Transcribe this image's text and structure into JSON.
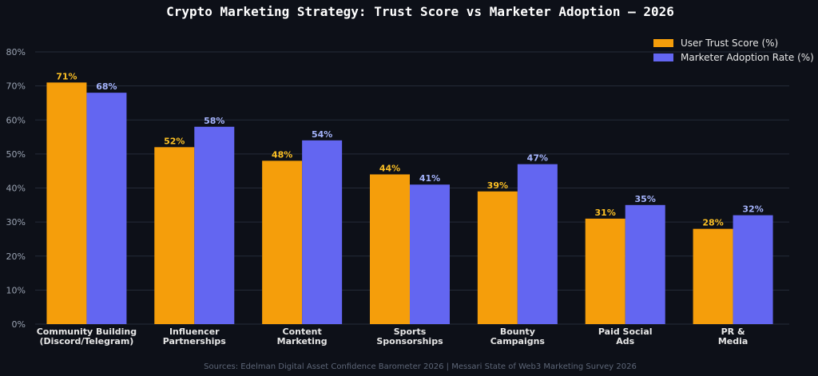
{
  "chart_data": {
    "type": "bar",
    "title": "Crypto Marketing Strategy: Trust Score vs Marketer Adoption — 2026",
    "categories": [
      [
        "Community Building",
        "(Discord/Telegram)"
      ],
      [
        "Influencer",
        "Partnerships"
      ],
      [
        "Content",
        "Marketing"
      ],
      [
        "Sports",
        "Sponsorships"
      ],
      [
        "Bounty",
        "Campaigns"
      ],
      [
        "Paid Social",
        "Ads"
      ],
      [
        "PR &",
        "Media"
      ]
    ],
    "series": [
      {
        "name": "User Trust Score (%)",
        "values": [
          71,
          52,
          48,
          44,
          39,
          31,
          28
        ],
        "color": "#f59e0b",
        "label_color": "#fbbf24"
      },
      {
        "name": "Marketer Adoption Rate (%)",
        "values": [
          68,
          58,
          54,
          41,
          47,
          35,
          32
        ],
        "color": "#6366f1",
        "label_color": "#a5b4fc"
      }
    ],
    "ylim": [
      0,
      80
    ],
    "yticks": [
      0,
      10,
      20,
      30,
      40,
      50,
      60,
      70,
      80
    ],
    "tick_suffix": "%",
    "grid": true,
    "legend_position": "top-right",
    "source": "Sources: Edelman Digital Asset Confidence Barometer 2026 | Messari State of Web3 Marketing Survey 2026"
  }
}
